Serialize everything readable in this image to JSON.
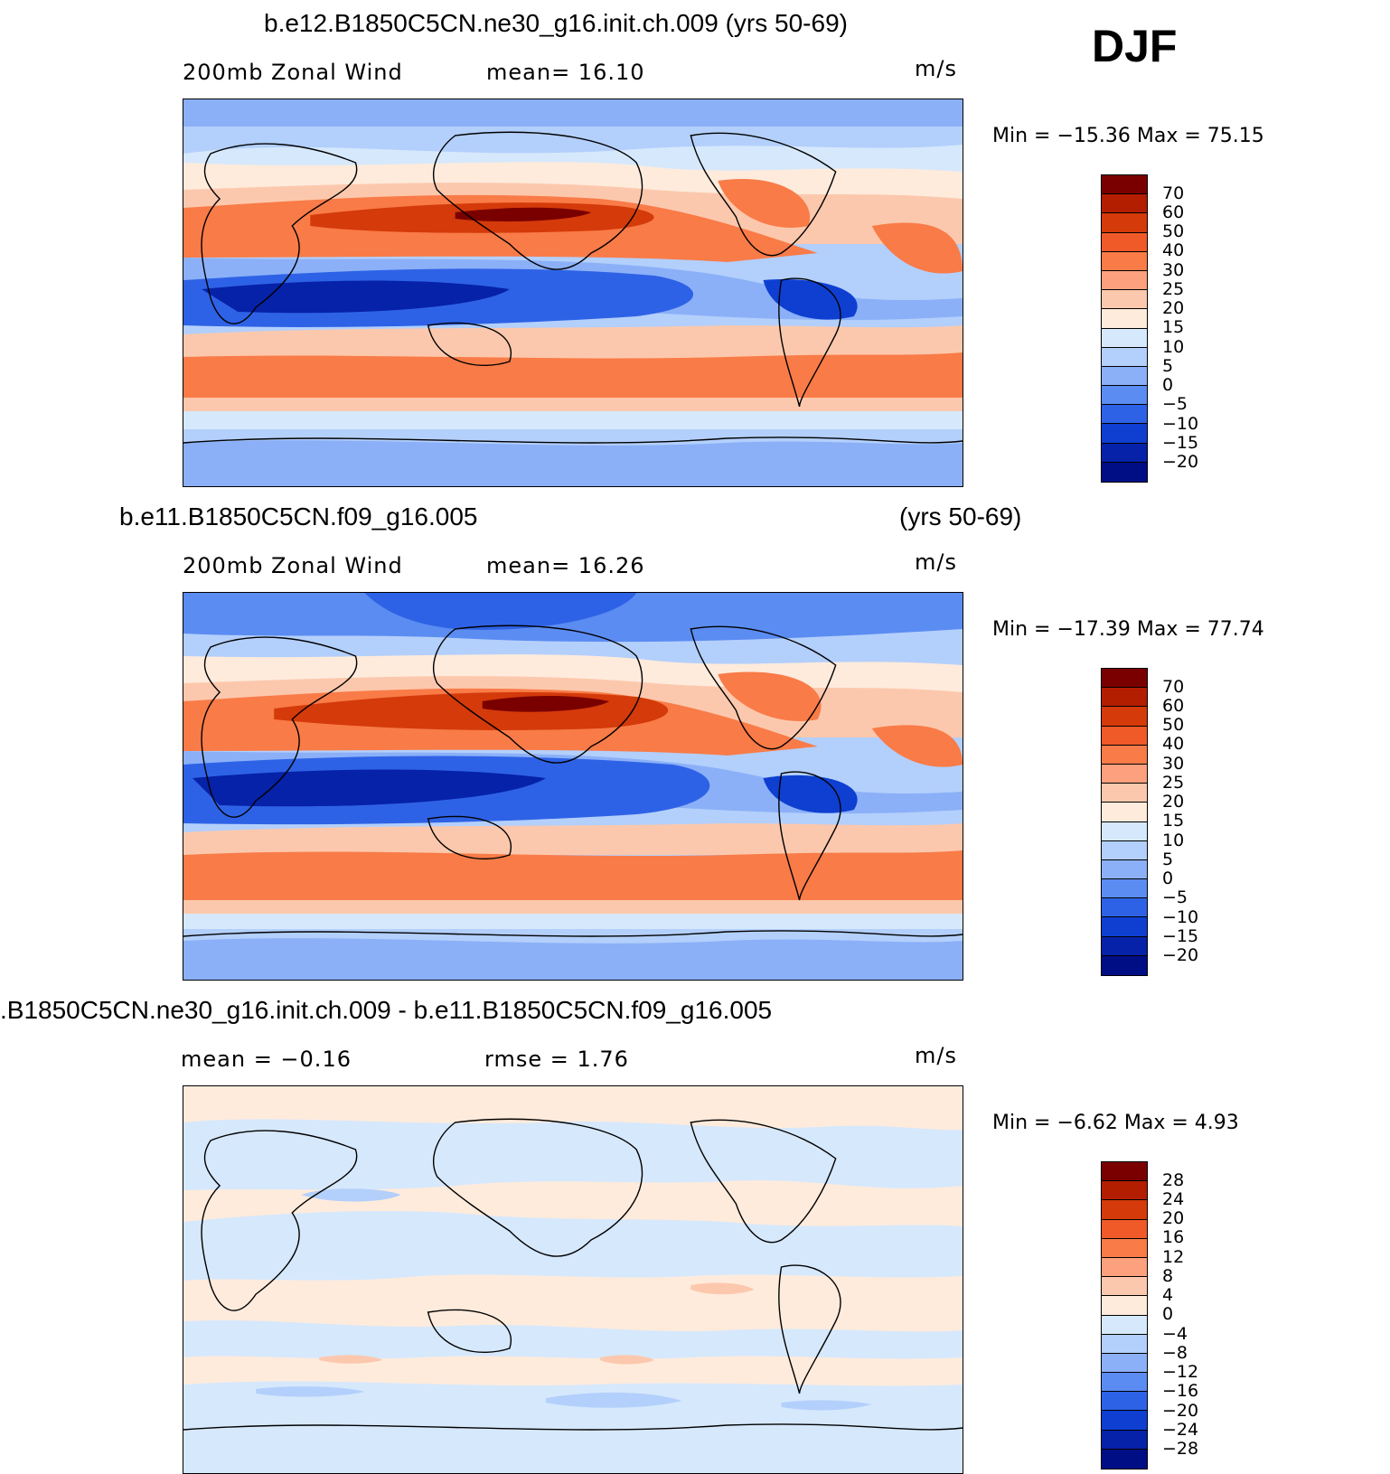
{
  "season": "DJF",
  "panels": [
    {
      "title": "b.e12.B1850C5CN.ne30_g16.init.ch.009 (yrs 50-69)",
      "title_extra": "",
      "left_label": "200mb Zonal Wind",
      "center_label": "mean=   16.10",
      "units": "m/s",
      "minmax": "Min  =  −15.36  Max  =    75.15",
      "colorbar_labels": [
        "70",
        "60",
        "50",
        "40",
        "30",
        "25",
        "20",
        "15",
        "10",
        "5",
        "0",
        "−5",
        "−10",
        "−15",
        "−20"
      ]
    },
    {
      "title": "b.e11.B1850C5CN.f09_g16.005",
      "title_extra": "(yrs 50-69)",
      "left_label": "200mb Zonal Wind",
      "center_label": "mean=   16.26",
      "units": "m/s",
      "minmax": "Min  =  −17.39  Max  =    77.74",
      "colorbar_labels": [
        "70",
        "60",
        "50",
        "40",
        "30",
        "25",
        "20",
        "15",
        "10",
        "5",
        "0",
        "−5",
        "−10",
        "−15",
        "−20"
      ]
    },
    {
      "title": ".B1850C5CN.ne30_g16.init.ch.009 - b.e11.B1850C5CN.f09_g16.005",
      "title_extra": "",
      "left_label": "mean =   −0.16",
      "center_label": "rmse =    1.76",
      "units": "m/s",
      "minmax": "Min  =    −6.62  Max  =     4.93",
      "colorbar_labels": [
        "28",
        "24",
        "20",
        "16",
        "12",
        "8",
        "4",
        "0",
        "−4",
        "−8",
        "−12",
        "−16",
        "−20",
        "−24",
        "−28"
      ]
    }
  ],
  "colors": {
    "wind_scale": [
      "#7a0000",
      "#b31d00",
      "#d43a0a",
      "#f05a28",
      "#f97b47",
      "#fca07e",
      "#fcc8ad",
      "#feebdc",
      "#d6e8fc",
      "#b3cffb",
      "#8bb0f8",
      "#5b8cf2",
      "#2e62e6",
      "#0e3fd1",
      "#0522a8",
      "#000e85"
    ],
    "diff_scale": [
      "#7a0000",
      "#b31d00",
      "#d43a0a",
      "#f05a28",
      "#f97b47",
      "#fca07e",
      "#fcc8ad",
      "#feebdc",
      "#d6e8fc",
      "#b3cffb",
      "#8bb0f8",
      "#5b8cf2",
      "#2e62e6",
      "#0e3fd1",
      "#0522a8",
      "#000e85"
    ]
  }
}
